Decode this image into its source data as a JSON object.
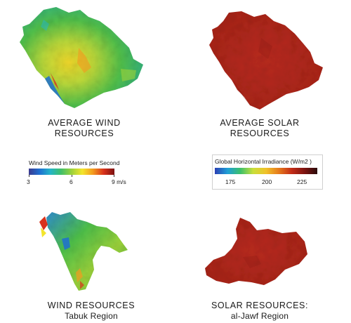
{
  "panels": {
    "avg_wind": {
      "caption_line1": "AVERAGE WIND",
      "caption_line2": "RESOURCES",
      "map": "saudi-arabia-wind-speed-map"
    },
    "avg_solar": {
      "caption_line1": "AVERAGE SOLAR",
      "caption_line2": "RESOURCES",
      "map": "saudi-arabia-solar-irradiance-map"
    },
    "wind_tabuk": {
      "caption_line1": "WIND RESOURCES",
      "caption_line2": "Tabuk Region",
      "map": "tabuk-region-wind-map"
    },
    "solar_jawf": {
      "caption_line1": "SOLAR RESOURCES:",
      "caption_line2": "al-Jawf Region",
      "map": "al-jawf-region-solar-map"
    }
  },
  "wind_legend": {
    "title": "Wind Speed in Meters per Second",
    "ticks": [
      "3",
      "6",
      "9 m/s"
    ],
    "colors": [
      "#3b3a8f",
      "#1f6fd1",
      "#23b5c9",
      "#3fbf6a",
      "#9cd23a",
      "#f3e52c",
      "#f39a1e",
      "#d9321c",
      "#7a1010"
    ]
  },
  "solar_legend": {
    "title": "Global Horizontal Irradiance (W/m2 )",
    "ticks": [
      "175",
      "200",
      "225"
    ],
    "colors": [
      "#2b3fb3",
      "#1f9fd6",
      "#3cc06a",
      "#c9de3a",
      "#f0c22a",
      "#e57a1c",
      "#c32c17",
      "#7d1410",
      "#2a0b0b"
    ]
  },
  "colors": {
    "solar_fill": "#b5281d",
    "solar_shade": "#8e1c14",
    "wind_base": "#4fc14a"
  }
}
